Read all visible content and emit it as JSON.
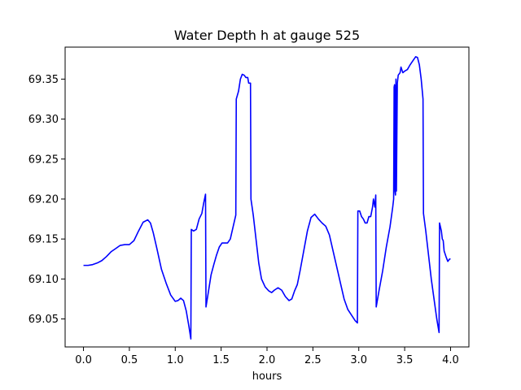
{
  "chart_data": {
    "type": "line",
    "title": "Water Depth h at gauge 525",
    "xlabel": "hours",
    "ylabel": "",
    "xlim": [
      -0.2,
      4.2
    ],
    "ylim": [
      69.015,
      69.39
    ],
    "grid": false,
    "legend": "none",
    "x_ticks": [
      {
        "value": 0.0,
        "label": "0.0"
      },
      {
        "value": 0.5,
        "label": "0.5"
      },
      {
        "value": 1.0,
        "label": "1.0"
      },
      {
        "value": 1.5,
        "label": "1.5"
      },
      {
        "value": 2.0,
        "label": "2.0"
      },
      {
        "value": 2.5,
        "label": "2.5"
      },
      {
        "value": 3.0,
        "label": "3.0"
      },
      {
        "value": 3.5,
        "label": "3.5"
      },
      {
        "value": 4.0,
        "label": "4.0"
      }
    ],
    "y_ticks": [
      {
        "value": 69.05,
        "label": "69.05"
      },
      {
        "value": 69.1,
        "label": "69.10"
      },
      {
        "value": 69.15,
        "label": "69.15"
      },
      {
        "value": 69.2,
        "label": "69.20"
      },
      {
        "value": 69.25,
        "label": "69.25"
      },
      {
        "value": 69.3,
        "label": "69.30"
      },
      {
        "value": 69.35,
        "label": "69.35"
      }
    ],
    "series": [
      {
        "color": "#0000ff",
        "points": [
          [
            0.0,
            69.117
          ],
          [
            0.05,
            69.117
          ],
          [
            0.1,
            69.118
          ],
          [
            0.15,
            69.12
          ],
          [
            0.2,
            69.123
          ],
          [
            0.25,
            69.128
          ],
          [
            0.3,
            69.134
          ],
          [
            0.35,
            69.138
          ],
          [
            0.4,
            69.142
          ],
          [
            0.45,
            69.143
          ],
          [
            0.5,
            69.143
          ],
          [
            0.55,
            69.148
          ],
          [
            0.6,
            69.16
          ],
          [
            0.65,
            69.171
          ],
          [
            0.7,
            69.174
          ],
          [
            0.73,
            69.17
          ],
          [
            0.76,
            69.158
          ],
          [
            0.8,
            69.138
          ],
          [
            0.85,
            69.112
          ],
          [
            0.9,
            69.095
          ],
          [
            0.95,
            69.08
          ],
          [
            1.0,
            69.072
          ],
          [
            1.03,
            69.073
          ],
          [
            1.06,
            69.076
          ],
          [
            1.09,
            69.073
          ],
          [
            1.12,
            69.06
          ],
          [
            1.15,
            69.04
          ],
          [
            1.17,
            69.025
          ],
          [
            1.175,
            69.162
          ],
          [
            1.2,
            69.16
          ],
          [
            1.23,
            69.162
          ],
          [
            1.26,
            69.175
          ],
          [
            1.29,
            69.182
          ],
          [
            1.31,
            69.195
          ],
          [
            1.33,
            69.206
          ],
          [
            1.335,
            69.065
          ],
          [
            1.36,
            69.083
          ],
          [
            1.39,
            69.105
          ],
          [
            1.42,
            69.118
          ],
          [
            1.45,
            69.13
          ],
          [
            1.48,
            69.14
          ],
          [
            1.51,
            69.145
          ],
          [
            1.54,
            69.145
          ],
          [
            1.57,
            69.145
          ],
          [
            1.6,
            69.15
          ],
          [
            1.63,
            69.165
          ],
          [
            1.66,
            69.18
          ],
          [
            1.665,
            69.325
          ],
          [
            1.69,
            69.335
          ],
          [
            1.71,
            69.35
          ],
          [
            1.73,
            69.356
          ],
          [
            1.75,
            69.355
          ],
          [
            1.77,
            69.352
          ],
          [
            1.79,
            69.352
          ],
          [
            1.8,
            69.345
          ],
          [
            1.82,
            69.345
          ],
          [
            1.825,
            69.2
          ],
          [
            1.85,
            69.18
          ],
          [
            1.88,
            69.15
          ],
          [
            1.91,
            69.12
          ],
          [
            1.94,
            69.1
          ],
          [
            1.98,
            69.09
          ],
          [
            2.02,
            69.085
          ],
          [
            2.05,
            69.083
          ],
          [
            2.08,
            69.086
          ],
          [
            2.12,
            69.089
          ],
          [
            2.16,
            69.086
          ],
          [
            2.2,
            69.078
          ],
          [
            2.24,
            69.073
          ],
          [
            2.27,
            69.075
          ],
          [
            2.3,
            69.085
          ],
          [
            2.33,
            69.093
          ],
          [
            2.36,
            69.11
          ],
          [
            2.4,
            69.135
          ],
          [
            2.44,
            69.16
          ],
          [
            2.48,
            69.177
          ],
          [
            2.52,
            69.181
          ],
          [
            2.56,
            69.175
          ],
          [
            2.6,
            69.17
          ],
          [
            2.64,
            69.166
          ],
          [
            2.68,
            69.155
          ],
          [
            2.72,
            69.135
          ],
          [
            2.76,
            69.115
          ],
          [
            2.8,
            69.095
          ],
          [
            2.84,
            69.075
          ],
          [
            2.88,
            69.062
          ],
          [
            2.92,
            69.055
          ],
          [
            2.96,
            69.048
          ],
          [
            2.985,
            69.045
          ],
          [
            2.99,
            69.185
          ],
          [
            3.01,
            69.185
          ],
          [
            3.03,
            69.178
          ],
          [
            3.05,
            69.175
          ],
          [
            3.07,
            69.17
          ],
          [
            3.09,
            69.17
          ],
          [
            3.11,
            69.178
          ],
          [
            3.13,
            69.178
          ],
          [
            3.15,
            69.19
          ],
          [
            3.16,
            69.2
          ],
          [
            3.175,
            69.19
          ],
          [
            3.185,
            69.205
          ],
          [
            3.19,
            69.065
          ],
          [
            3.22,
            69.085
          ],
          [
            3.26,
            69.11
          ],
          [
            3.3,
            69.14
          ],
          [
            3.34,
            69.165
          ],
          [
            3.37,
            69.19
          ],
          [
            3.38,
            69.2
          ],
          [
            3.385,
            69.34
          ],
          [
            3.39,
            69.343
          ],
          [
            3.395,
            69.21
          ],
          [
            3.4,
            69.205
          ],
          [
            3.405,
            69.35
          ],
          [
            3.41,
            69.21
          ],
          [
            3.42,
            69.345
          ],
          [
            3.43,
            69.355
          ],
          [
            3.45,
            69.358
          ],
          [
            3.46,
            69.365
          ],
          [
            3.48,
            69.358
          ],
          [
            3.5,
            69.36
          ],
          [
            3.53,
            69.362
          ],
          [
            3.56,
            69.368
          ],
          [
            3.59,
            69.373
          ],
          [
            3.62,
            69.378
          ],
          [
            3.64,
            69.377
          ],
          [
            3.66,
            69.368
          ],
          [
            3.68,
            69.35
          ],
          [
            3.7,
            69.325
          ],
          [
            3.705,
            69.182
          ],
          [
            3.73,
            69.16
          ],
          [
            3.76,
            69.13
          ],
          [
            3.79,
            69.1
          ],
          [
            3.82,
            69.075
          ],
          [
            3.85,
            69.05
          ],
          [
            3.875,
            69.033
          ],
          [
            3.88,
            69.17
          ],
          [
            3.9,
            69.16
          ],
          [
            3.91,
            69.15
          ],
          [
            3.92,
            69.148
          ],
          [
            3.93,
            69.135
          ],
          [
            3.95,
            69.128
          ],
          [
            3.97,
            69.122
          ],
          [
            3.99,
            69.125
          ],
          [
            4.0,
            69.125
          ]
        ]
      }
    ]
  }
}
